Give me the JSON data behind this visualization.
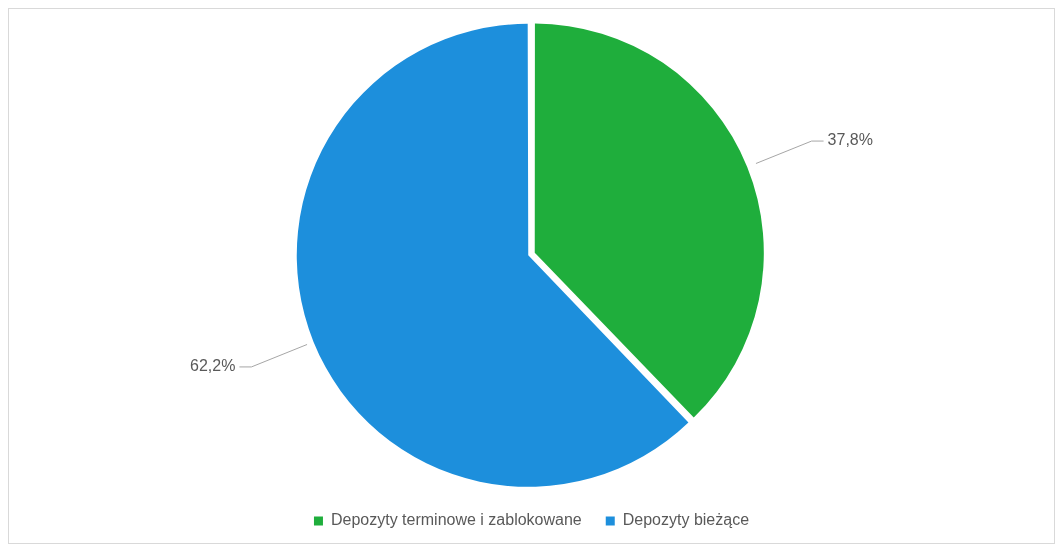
{
  "chart_data": {
    "type": "pie",
    "categories": [
      "Depozyty terminowe i zablokowane",
      "Depozyty bieżące"
    ],
    "values": [
      37.8,
      62.2
    ],
    "colors": [
      "#1fae3c",
      "#1d8fdc"
    ],
    "value_labels": [
      "37,8%",
      "62,2%"
    ],
    "legend": "bottom"
  }
}
